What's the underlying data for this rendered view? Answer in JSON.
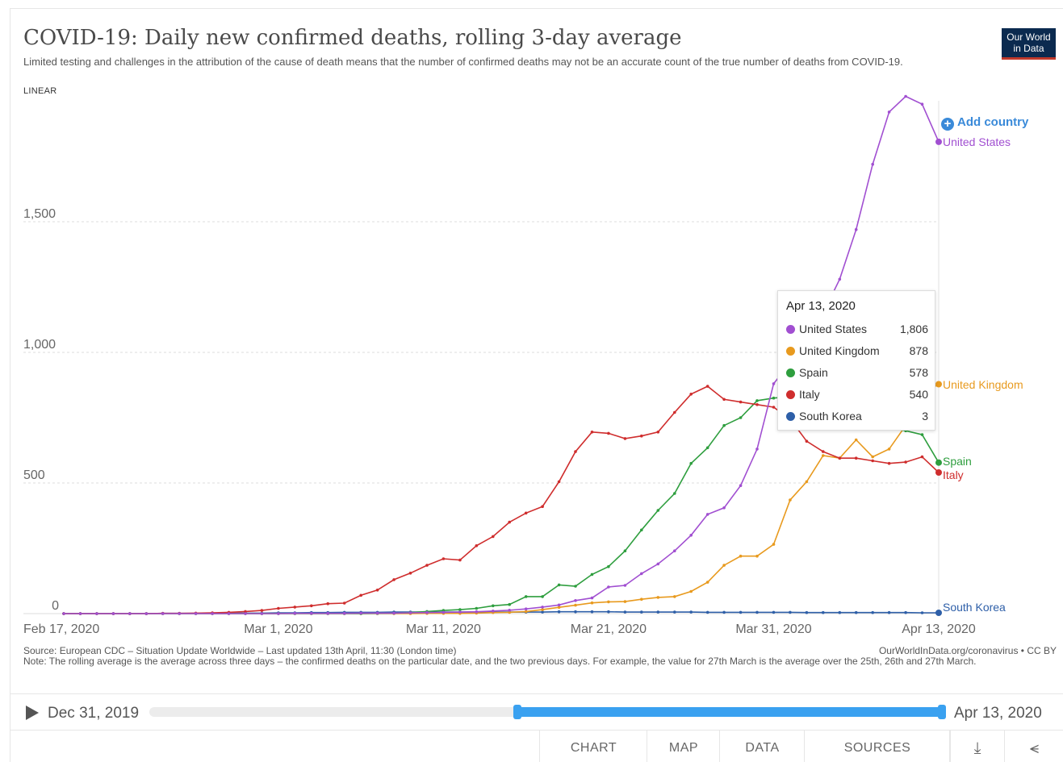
{
  "header": {
    "title": "COVID-19: Daily new confirmed deaths, rolling 3-day average",
    "subtitle": "Limited testing and challenges in the attribution of the cause of death means that the number of confirmed deaths may not be an accurate count of the true number of deaths from COVID-19.",
    "scale_label": "LINEAR",
    "logo_line1": "Our World",
    "logo_line2": "in Data"
  },
  "add_country_label": "Add country",
  "tooltip": {
    "date": "Apr 13, 2020",
    "rows": [
      {
        "name": "United States",
        "value": "1,806",
        "color": "#a14fd1"
      },
      {
        "name": "United Kingdom",
        "value": "878",
        "color": "#e89a1e"
      },
      {
        "name": "Spain",
        "value": "578",
        "color": "#2e9e3e"
      },
      {
        "name": "Italy",
        "value": "540",
        "color": "#cf2d2d"
      },
      {
        "name": "South Korea",
        "value": "3",
        "color": "#2e5fa8"
      }
    ]
  },
  "chart_data": {
    "type": "line",
    "x_start": "Feb 17, 2020",
    "x_end": "Apr 13, 2020",
    "x_ticks": [
      "Feb 17, 2020",
      "Mar 1, 2020",
      "Mar 11, 2020",
      "Mar 21, 2020",
      "Mar 31, 2020",
      "Apr 13, 2020"
    ],
    "y_ticks": [
      "0",
      "500",
      "1,000",
      "1,500"
    ],
    "ylim": [
      0,
      2000
    ],
    "grid": true,
    "series": [
      {
        "name": "United States",
        "color": "#a14fd1",
        "values": [
          0,
          0,
          0,
          0,
          0,
          0,
          0,
          0,
          0,
          0,
          0,
          0,
          0,
          0,
          1,
          1,
          1,
          1,
          2,
          2,
          2,
          3,
          4,
          5,
          6,
          7,
          10,
          13,
          18,
          25,
          33,
          50,
          60,
          102,
          108,
          153,
          190,
          240,
          300,
          380,
          405,
          490,
          630,
          880,
          960,
          1040,
          1150,
          1280,
          1470,
          1720,
          1920,
          1980,
          1950,
          1806
        ]
      },
      {
        "name": "United Kingdom",
        "color": "#e89a1e",
        "values": [
          0,
          0,
          0,
          0,
          0,
          0,
          0,
          0,
          0,
          0,
          0,
          0,
          0,
          0,
          0,
          0,
          0,
          0,
          0,
          0,
          0,
          0,
          1,
          1,
          1,
          2,
          4,
          5,
          8,
          15,
          24,
          32,
          41,
          45,
          46,
          55,
          62,
          65,
          85,
          120,
          185,
          220,
          220,
          265,
          435,
          505,
          605,
          595,
          665,
          600,
          630,
          720,
          840,
          878
        ]
      },
      {
        "name": "Spain",
        "color": "#2e9e3e",
        "values": [
          0,
          0,
          0,
          0,
          0,
          0,
          0,
          0,
          0,
          0,
          0,
          0,
          0,
          0,
          0,
          0,
          0,
          0,
          0,
          1,
          2,
          4,
          8,
          12,
          15,
          20,
          30,
          35,
          65,
          65,
          110,
          105,
          150,
          180,
          240,
          320,
          395,
          460,
          575,
          635,
          720,
          750,
          815,
          825,
          830,
          835,
          890,
          880,
          760,
          740,
          710,
          700,
          685,
          578
        ]
      },
      {
        "name": "Italy",
        "color": "#cf2d2d",
        "values": [
          0,
          0,
          0,
          0,
          0,
          0,
          1,
          1,
          2,
          3,
          5,
          8,
          12,
          20,
          25,
          30,
          38,
          40,
          70,
          90,
          130,
          155,
          185,
          210,
          205,
          260,
          295,
          350,
          385,
          410,
          505,
          620,
          695,
          690,
          670,
          680,
          695,
          770,
          840,
          870,
          820,
          810,
          800,
          790,
          745,
          660,
          620,
          595,
          595,
          585,
          575,
          580,
          600,
          540
        ]
      },
      {
        "name": "South Korea",
        "color": "#2e5fa8",
        "values": [
          0,
          0,
          0,
          0,
          0,
          0,
          1,
          1,
          1,
          1,
          2,
          2,
          2,
          3,
          3,
          4,
          4,
          5,
          5,
          5,
          6,
          6,
          6,
          6,
          6,
          6,
          6,
          6,
          6,
          6,
          7,
          7,
          7,
          7,
          6,
          6,
          6,
          6,
          6,
          5,
          5,
          5,
          5,
          5,
          5,
          4,
          4,
          4,
          4,
          4,
          4,
          4,
          3,
          3
        ]
      }
    ],
    "footer_source": "Source: European CDC – Situation Update Worldwide – Last updated 13th April, 11:30 (London time)",
    "footer_note": "Note: The rolling average is the average across three days – the confirmed deaths on the particular date, and the two previous days. For example, the value for 27th March is the average over the 25th, 26th and 27th March.",
    "footer_link": "OurWorldInData.org/coronavirus • CC BY"
  },
  "timeline": {
    "start_label": "Dec 31, 2019",
    "end_label": "Apr 13, 2020",
    "range_start_fraction": 0.46,
    "range_end_fraction": 1.0
  },
  "tabs": [
    "CHART",
    "MAP",
    "DATA",
    "SOURCES"
  ],
  "icons": {
    "download": "download-icon",
    "share": "share-icon"
  }
}
